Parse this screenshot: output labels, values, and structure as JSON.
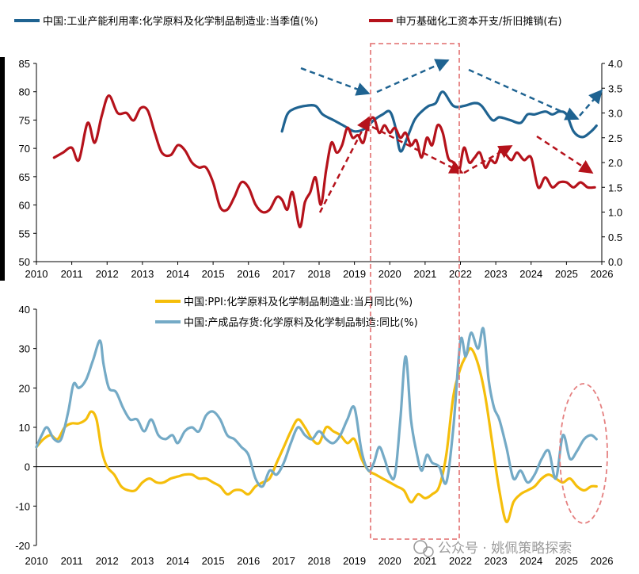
{
  "watermark": "公众号 · 姚佩策略探索",
  "chart_data": [
    {
      "type": "line",
      "x_ticks": [
        "2010",
        "2011",
        "2012",
        "2013",
        "2014",
        "2015",
        "2016",
        "2017",
        "2018",
        "2019",
        "2020",
        "2021",
        "2022",
        "2023",
        "2024",
        "2025",
        "2026"
      ],
      "ylim": [
        50,
        85
      ],
      "y_ticks": [
        "50",
        "55",
        "60",
        "65",
        "70",
        "75",
        "80",
        "85"
      ],
      "y2lim": [
        0.0,
        4.0
      ],
      "y2_ticks": [
        "0.0",
        "0.5",
        "1.0",
        "1.5",
        "2.0",
        "2.5",
        "3.0",
        "3.5",
        "4.0"
      ],
      "legend_position": "top",
      "series": [
        {
          "name": "中国:工业产能利用率:化学原料及化学制品制造业:当季值(%)",
          "axis": "left",
          "color": "#1f6391",
          "x": [
            2016.95,
            2017.1,
            2017.3,
            2017.6,
            2017.9,
            2018.1,
            2018.4,
            2018.7,
            2019.0,
            2019.3,
            2019.55,
            2019.8,
            2020.0,
            2020.15,
            2020.3,
            2020.5,
            2020.7,
            2020.9,
            2021.1,
            2021.3,
            2021.5,
            2021.8,
            2022.1,
            2022.4,
            2022.6,
            2022.9,
            2023.1,
            2023.4,
            2023.7,
            2023.9,
            2024.1,
            2024.4,
            2024.6,
            2024.8,
            2025.0,
            2025.2,
            2025.45,
            2025.7,
            2025.85
          ],
          "y": [
            73,
            76,
            77,
            77.5,
            77.5,
            76,
            75,
            74,
            73,
            73.5,
            75,
            76,
            76.5,
            74,
            69.5,
            72,
            75,
            76.5,
            77.5,
            78,
            80,
            77.5,
            77.5,
            78,
            77.5,
            75,
            75.5,
            75,
            74.5,
            76,
            76,
            76.5,
            76,
            76.5,
            76,
            73,
            72,
            73,
            74
          ]
        },
        {
          "name": "申万基础化工资本开支/折旧摊销(右)",
          "axis": "right",
          "color": "#b5121b",
          "x": [
            2010.5,
            2010.75,
            2011.0,
            2011.2,
            2011.45,
            2011.65,
            2011.85,
            2012.05,
            2012.3,
            2012.55,
            2012.75,
            2012.95,
            2013.15,
            2013.35,
            2013.55,
            2013.8,
            2014.0,
            2014.2,
            2014.4,
            2014.6,
            2014.8,
            2015.0,
            2015.2,
            2015.4,
            2015.6,
            2015.8,
            2016.0,
            2016.2,
            2016.4,
            2016.6,
            2016.8,
            2016.95,
            2017.1,
            2017.25,
            2017.45,
            2017.6,
            2017.75,
            2017.9,
            2018.05,
            2018.2,
            2018.35,
            2018.5,
            2018.65,
            2018.8,
            2018.95,
            2019.1,
            2019.25,
            2019.4,
            2019.55,
            2019.7,
            2019.85,
            2020.0,
            2020.15,
            2020.3,
            2020.45,
            2020.6,
            2020.75,
            2020.9,
            2021.05,
            2021.2,
            2021.35,
            2021.5,
            2021.65,
            2021.8,
            2021.95,
            2022.1,
            2022.25,
            2022.4,
            2022.55,
            2022.7,
            2022.85,
            2023.0,
            2023.15,
            2023.3,
            2023.45,
            2023.6,
            2023.8,
            2024.0,
            2024.2,
            2024.4,
            2024.6,
            2024.8,
            2025.0,
            2025.2,
            2025.4,
            2025.6,
            2025.8
          ],
          "y": [
            2.1,
            2.2,
            2.3,
            2.05,
            2.8,
            2.4,
            2.95,
            3.35,
            3.0,
            3.0,
            2.85,
            3.1,
            3.05,
            2.6,
            2.2,
            2.15,
            2.35,
            2.25,
            2.0,
            1.9,
            1.9,
            1.6,
            1.1,
            1.05,
            1.3,
            1.6,
            1.5,
            1.15,
            1.0,
            1.05,
            1.3,
            1.25,
            1.05,
            1.4,
            0.7,
            1.2,
            1.4,
            1.7,
            1.15,
            1.85,
            2.4,
            2.2,
            2.35,
            2.7,
            2.5,
            2.55,
            2.4,
            2.8,
            2.9,
            2.6,
            2.75,
            2.6,
            2.7,
            2.5,
            2.6,
            2.35,
            2.45,
            2.1,
            2.5,
            2.35,
            2.75,
            2.6,
            2.1,
            2.0,
            1.8,
            2.3,
            2.0,
            2.1,
            2.2,
            1.9,
            2.05,
            2.0,
            2.3,
            2.15,
            2.05,
            2.2,
            2.05,
            2.1,
            1.5,
            1.7,
            1.5,
            1.6,
            1.6,
            1.5,
            1.6,
            1.5,
            1.5
          ]
        }
      ]
    },
    {
      "type": "line",
      "x_ticks": [
        "2010",
        "2011",
        "2012",
        "2013",
        "2014",
        "2015",
        "2016",
        "2017",
        "2018",
        "2019",
        "2020",
        "2021",
        "2022",
        "2023",
        "2024",
        "2025",
        "2026"
      ],
      "ylim": [
        -20,
        40
      ],
      "y_ticks": [
        "-20",
        "-10",
        "0",
        "10",
        "20",
        "30",
        "40"
      ],
      "legend_position": "top",
      "series": [
        {
          "name": "中国:PPI:化学原料及化学制品制造业:当月同比(%)",
          "color": "#f5be0b",
          "x": [
            2010.0,
            2010.2,
            2010.4,
            2010.6,
            2010.8,
            2011.0,
            2011.2,
            2011.4,
            2011.55,
            2011.7,
            2011.85,
            2012.0,
            2012.2,
            2012.4,
            2012.6,
            2012.8,
            2013.0,
            2013.2,
            2013.4,
            2013.6,
            2013.8,
            2014.0,
            2014.2,
            2014.4,
            2014.6,
            2014.8,
            2015.0,
            2015.2,
            2015.4,
            2015.6,
            2015.8,
            2016.0,
            2016.2,
            2016.4,
            2016.6,
            2016.8,
            2017.0,
            2017.2,
            2017.4,
            2017.6,
            2017.8,
            2018.0,
            2018.2,
            2018.4,
            2018.6,
            2018.8,
            2019.0,
            2019.2,
            2019.4,
            2019.6,
            2019.8,
            2020.0,
            2020.2,
            2020.4,
            2020.6,
            2020.8,
            2021.0,
            2021.2,
            2021.4,
            2021.6,
            2021.8,
            2022.0,
            2022.15,
            2022.3,
            2022.5,
            2022.7,
            2022.9,
            2023.1,
            2023.3,
            2023.5,
            2023.7,
            2023.9,
            2024.1,
            2024.3,
            2024.5,
            2024.7,
            2024.9,
            2025.1,
            2025.3,
            2025.5,
            2025.7,
            2025.85
          ],
          "y": [
            5,
            7,
            8,
            7,
            10,
            11,
            11,
            12,
            14,
            12,
            4,
            0,
            -2,
            -5,
            -6,
            -6,
            -4,
            -3,
            -4,
            -4,
            -3,
            -2.5,
            -2,
            -2,
            -3,
            -3,
            -4,
            -5,
            -7,
            -6,
            -6,
            -7,
            -5,
            -4,
            -3,
            1,
            5,
            9,
            12,
            10,
            7,
            6,
            10,
            9,
            8,
            6,
            7,
            2,
            -1,
            -2,
            -3,
            -4,
            -5,
            -6,
            -9,
            -7,
            -8,
            -7,
            -5,
            3,
            18,
            25,
            28,
            30,
            26,
            18,
            6,
            -6,
            -14,
            -9,
            -7,
            -6,
            -5,
            -3,
            -2,
            -3,
            -4,
            -3,
            -5,
            -6,
            -5,
            -5
          ]
        },
        {
          "name": "中国:产成品存货:化学原料及化学制品制造:同比(%)",
          "color": "#74aac6",
          "x": [
            2010.0,
            2010.15,
            2010.3,
            2010.5,
            2010.7,
            2010.9,
            2011.05,
            2011.2,
            2011.4,
            2011.6,
            2011.8,
            2011.9,
            2012.05,
            2012.25,
            2012.45,
            2012.65,
            2012.85,
            2013.05,
            2013.25,
            2013.45,
            2013.65,
            2013.85,
            2014.0,
            2014.2,
            2014.4,
            2014.6,
            2014.8,
            2015.0,
            2015.2,
            2015.4,
            2015.6,
            2015.8,
            2016.0,
            2016.2,
            2016.4,
            2016.6,
            2016.8,
            2017.0,
            2017.2,
            2017.4,
            2017.6,
            2017.8,
            2018.0,
            2018.2,
            2018.4,
            2018.6,
            2018.8,
            2019.0,
            2019.2,
            2019.4,
            2019.55,
            2019.7,
            2019.85,
            2020.0,
            2020.15,
            2020.3,
            2020.45,
            2020.6,
            2020.75,
            2020.9,
            2021.05,
            2021.2,
            2021.4,
            2021.6,
            2021.8,
            2022.0,
            2022.15,
            2022.3,
            2022.5,
            2022.65,
            2022.8,
            2022.95,
            2023.1,
            2023.3,
            2023.5,
            2023.7,
            2023.9,
            2024.1,
            2024.3,
            2024.5,
            2024.7,
            2024.9,
            2025.1,
            2025.3,
            2025.5,
            2025.7,
            2025.85
          ],
          "y": [
            5,
            8,
            10,
            7,
            7,
            14,
            21,
            20,
            22,
            27,
            32,
            26,
            20,
            19,
            15,
            12,
            12,
            9,
            12,
            8,
            7,
            8,
            6,
            9,
            10,
            9,
            13,
            14,
            12,
            8,
            7,
            5,
            3,
            -3,
            -5,
            -1,
            -2,
            1,
            6,
            10,
            8,
            7,
            9,
            7,
            6,
            8,
            12,
            15,
            4,
            -1,
            1,
            5,
            2,
            -2,
            -2,
            12,
            28,
            12,
            4,
            -1,
            3,
            1,
            0,
            -4,
            10,
            32,
            28,
            34,
            30,
            35,
            22,
            15,
            12,
            5,
            -3,
            -1,
            -4,
            -2,
            2,
            4,
            -3,
            8,
            2,
            4,
            7,
            8,
            7
          ]
        }
      ]
    }
  ]
}
